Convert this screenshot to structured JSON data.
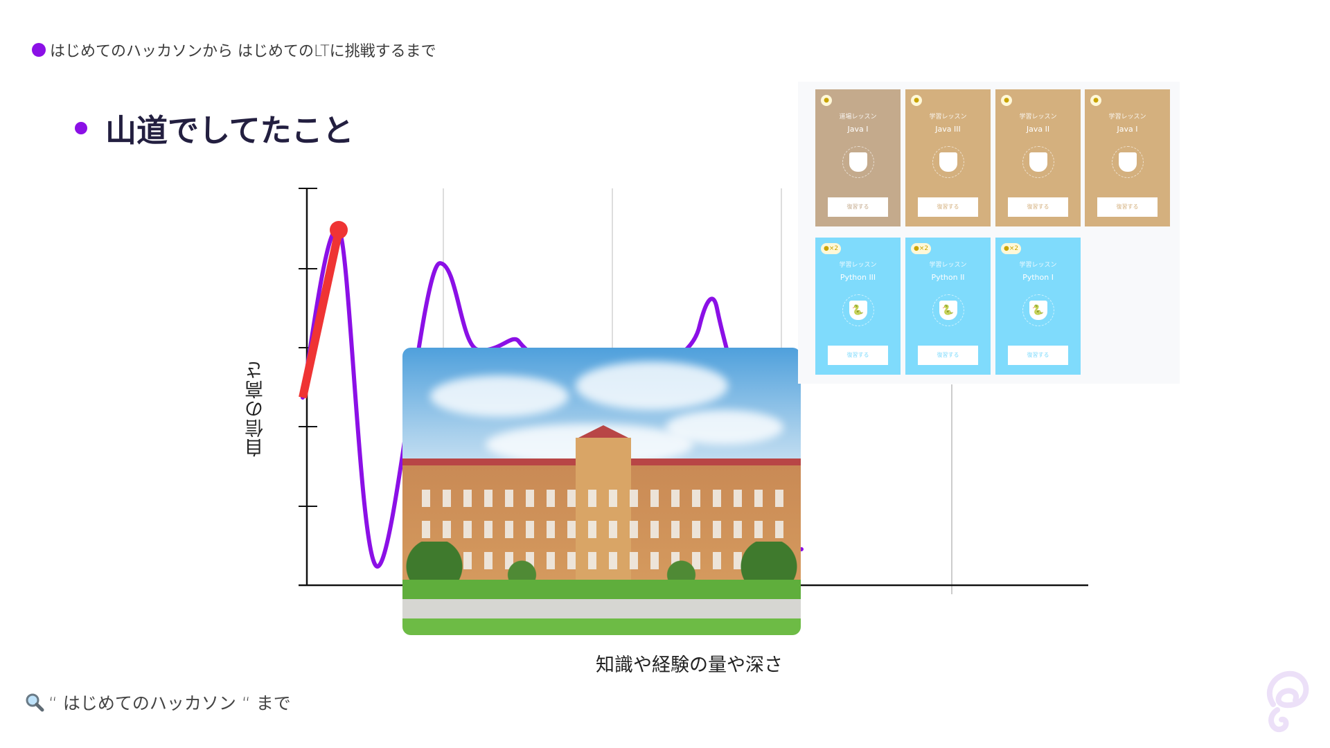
{
  "header": {
    "text": "はじめてのハッカソンから はじめてのLTに挑戦するまで"
  },
  "title": "山道でしてたこと",
  "diagram": {
    "ylabel": "自信の高さ",
    "xlabel": "知識や経験の量や深さ",
    "curve_color": "#8b10e6",
    "highlight_color": "#ef3434"
  },
  "cards": [
    {
      "badge": "",
      "type": "道場レッスン",
      "name": "Java I",
      "button": "復習する",
      "color": "#c4aa8c",
      "icon": "coffee-icon"
    },
    {
      "badge": "",
      "type": "学習レッスン",
      "name": "Java III",
      "button": "復習する",
      "color": "#d4b07e",
      "icon": "coffee-icon"
    },
    {
      "badge": "",
      "type": "学習レッスン",
      "name": "Java II",
      "button": "復習する",
      "color": "#d4b07e",
      "icon": "coffee-icon"
    },
    {
      "badge": "",
      "type": "学習レッスン",
      "name": "Java I",
      "button": "復習する",
      "color": "#d4b07e",
      "icon": "coffee-icon"
    },
    {
      "badge": "×2",
      "type": "学習レッスン",
      "name": "Python III",
      "button": "復習する",
      "color": "#7fdbfc",
      "icon": "python-icon"
    },
    {
      "badge": "×2",
      "type": "学習レッスン",
      "name": "Python II",
      "button": "復習する",
      "color": "#7fdbfc",
      "icon": "python-icon"
    },
    {
      "badge": "×2",
      "type": "学習レッスン",
      "name": "Python I",
      "button": "復習する",
      "color": "#7fdbfc",
      "icon": "python-icon"
    }
  ],
  "footer": {
    "text": "“ はじめてのハッカソン “ まで"
  }
}
